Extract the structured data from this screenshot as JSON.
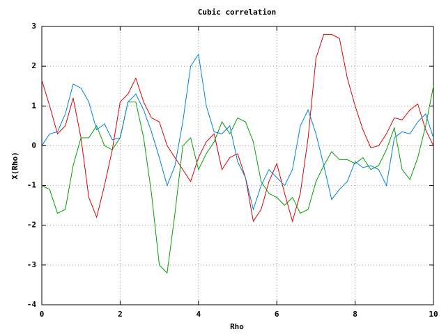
{
  "chart_data": {
    "type": "line",
    "title": "Cubic correlation",
    "xlabel": "Rho",
    "ylabel": "X(Rho)",
    "x": [
      0,
      0.2,
      0.4,
      0.6,
      0.8,
      1,
      1.2,
      1.4,
      1.6,
      1.8,
      2,
      2.2,
      2.4,
      2.6,
      2.8,
      3,
      3.2,
      3.4,
      3.6,
      3.8,
      4,
      4.2,
      4.4,
      4.6,
      4.8,
      5,
      5.2,
      5.4,
      5.6,
      5.8,
      6,
      6.2,
      6.4,
      6.6,
      6.8,
      7,
      7.2,
      7.4,
      7.6,
      7.8,
      8,
      8.2,
      8.4,
      8.6,
      8.8,
      9,
      9.2,
      9.4,
      9.6,
      9.8,
      10
    ],
    "series": [
      {
        "color": "#e00000",
        "values": [
          1.65,
          1.0,
          0.3,
          0.5,
          1.2,
          0.2,
          -1.3,
          -1.8,
          -1.0,
          -0.1,
          1.1,
          1.3,
          1.7,
          1.1,
          0.7,
          0.6,
          0.0,
          -0.3,
          -0.6,
          -0.9,
          -0.3,
          0.1,
          0.3,
          -0.6,
          -0.3,
          -0.2,
          -0.8,
          -1.9,
          -1.6,
          -0.9,
          -0.45,
          -1.2,
          -1.9,
          -1.2,
          0.2,
          2.2,
          2.8,
          2.8,
          2.7,
          1.7,
          1.0,
          0.4,
          -0.05,
          0.0,
          0.3,
          0.7,
          0.65,
          0.9,
          1.05,
          0.4,
          0.0
        ]
      },
      {
        "color": "#00a000",
        "values": [
          -1.0,
          -1.1,
          -1.7,
          -1.6,
          -0.5,
          0.2,
          0.2,
          0.5,
          0.0,
          -0.1,
          0.2,
          1.1,
          1.1,
          0.2,
          -1.2,
          -3.0,
          -3.2,
          -1.7,
          0.0,
          0.2,
          -0.6,
          -0.2,
          0.1,
          0.6,
          0.3,
          0.7,
          0.6,
          0.1,
          -0.9,
          -1.2,
          -1.3,
          -1.5,
          -1.3,
          -1.7,
          -1.6,
          -0.9,
          -0.5,
          -0.15,
          -0.35,
          -0.35,
          -0.45,
          -0.3,
          -0.6,
          -0.5,
          -0.1,
          0.45,
          -0.6,
          -0.85,
          -0.3,
          0.5,
          1.5
        ]
      },
      {
        "color": "#0080e0",
        "values": [
          0,
          0.3,
          0.35,
          0.8,
          1.55,
          1.45,
          1.1,
          0.4,
          0.55,
          0.15,
          0.2,
          1.1,
          1.3,
          0.9,
          0.35,
          -0.3,
          -1.0,
          -0.5,
          0.6,
          2.0,
          2.3,
          1.0,
          0.35,
          0.3,
          0.5,
          -0.4,
          -0.8,
          -1.6,
          -1.0,
          -0.6,
          -0.8,
          -1.0,
          -0.6,
          0.5,
          0.9,
          0.3,
          -0.5,
          -1.35,
          -1.1,
          -0.9,
          -0.4,
          -0.55,
          -0.5,
          -0.6,
          -1.0,
          0.2,
          0.35,
          0.3,
          0.6,
          0.8,
          0.2
        ]
      }
    ],
    "xlim": [
      0,
      10
    ],
    "xticks": [
      0,
      2,
      4,
      6,
      8,
      10
    ],
    "ylim": [
      -4,
      3
    ],
    "yticks": [
      -4,
      -3,
      -2,
      -1,
      0,
      1,
      2,
      3
    ],
    "grid": true
  }
}
